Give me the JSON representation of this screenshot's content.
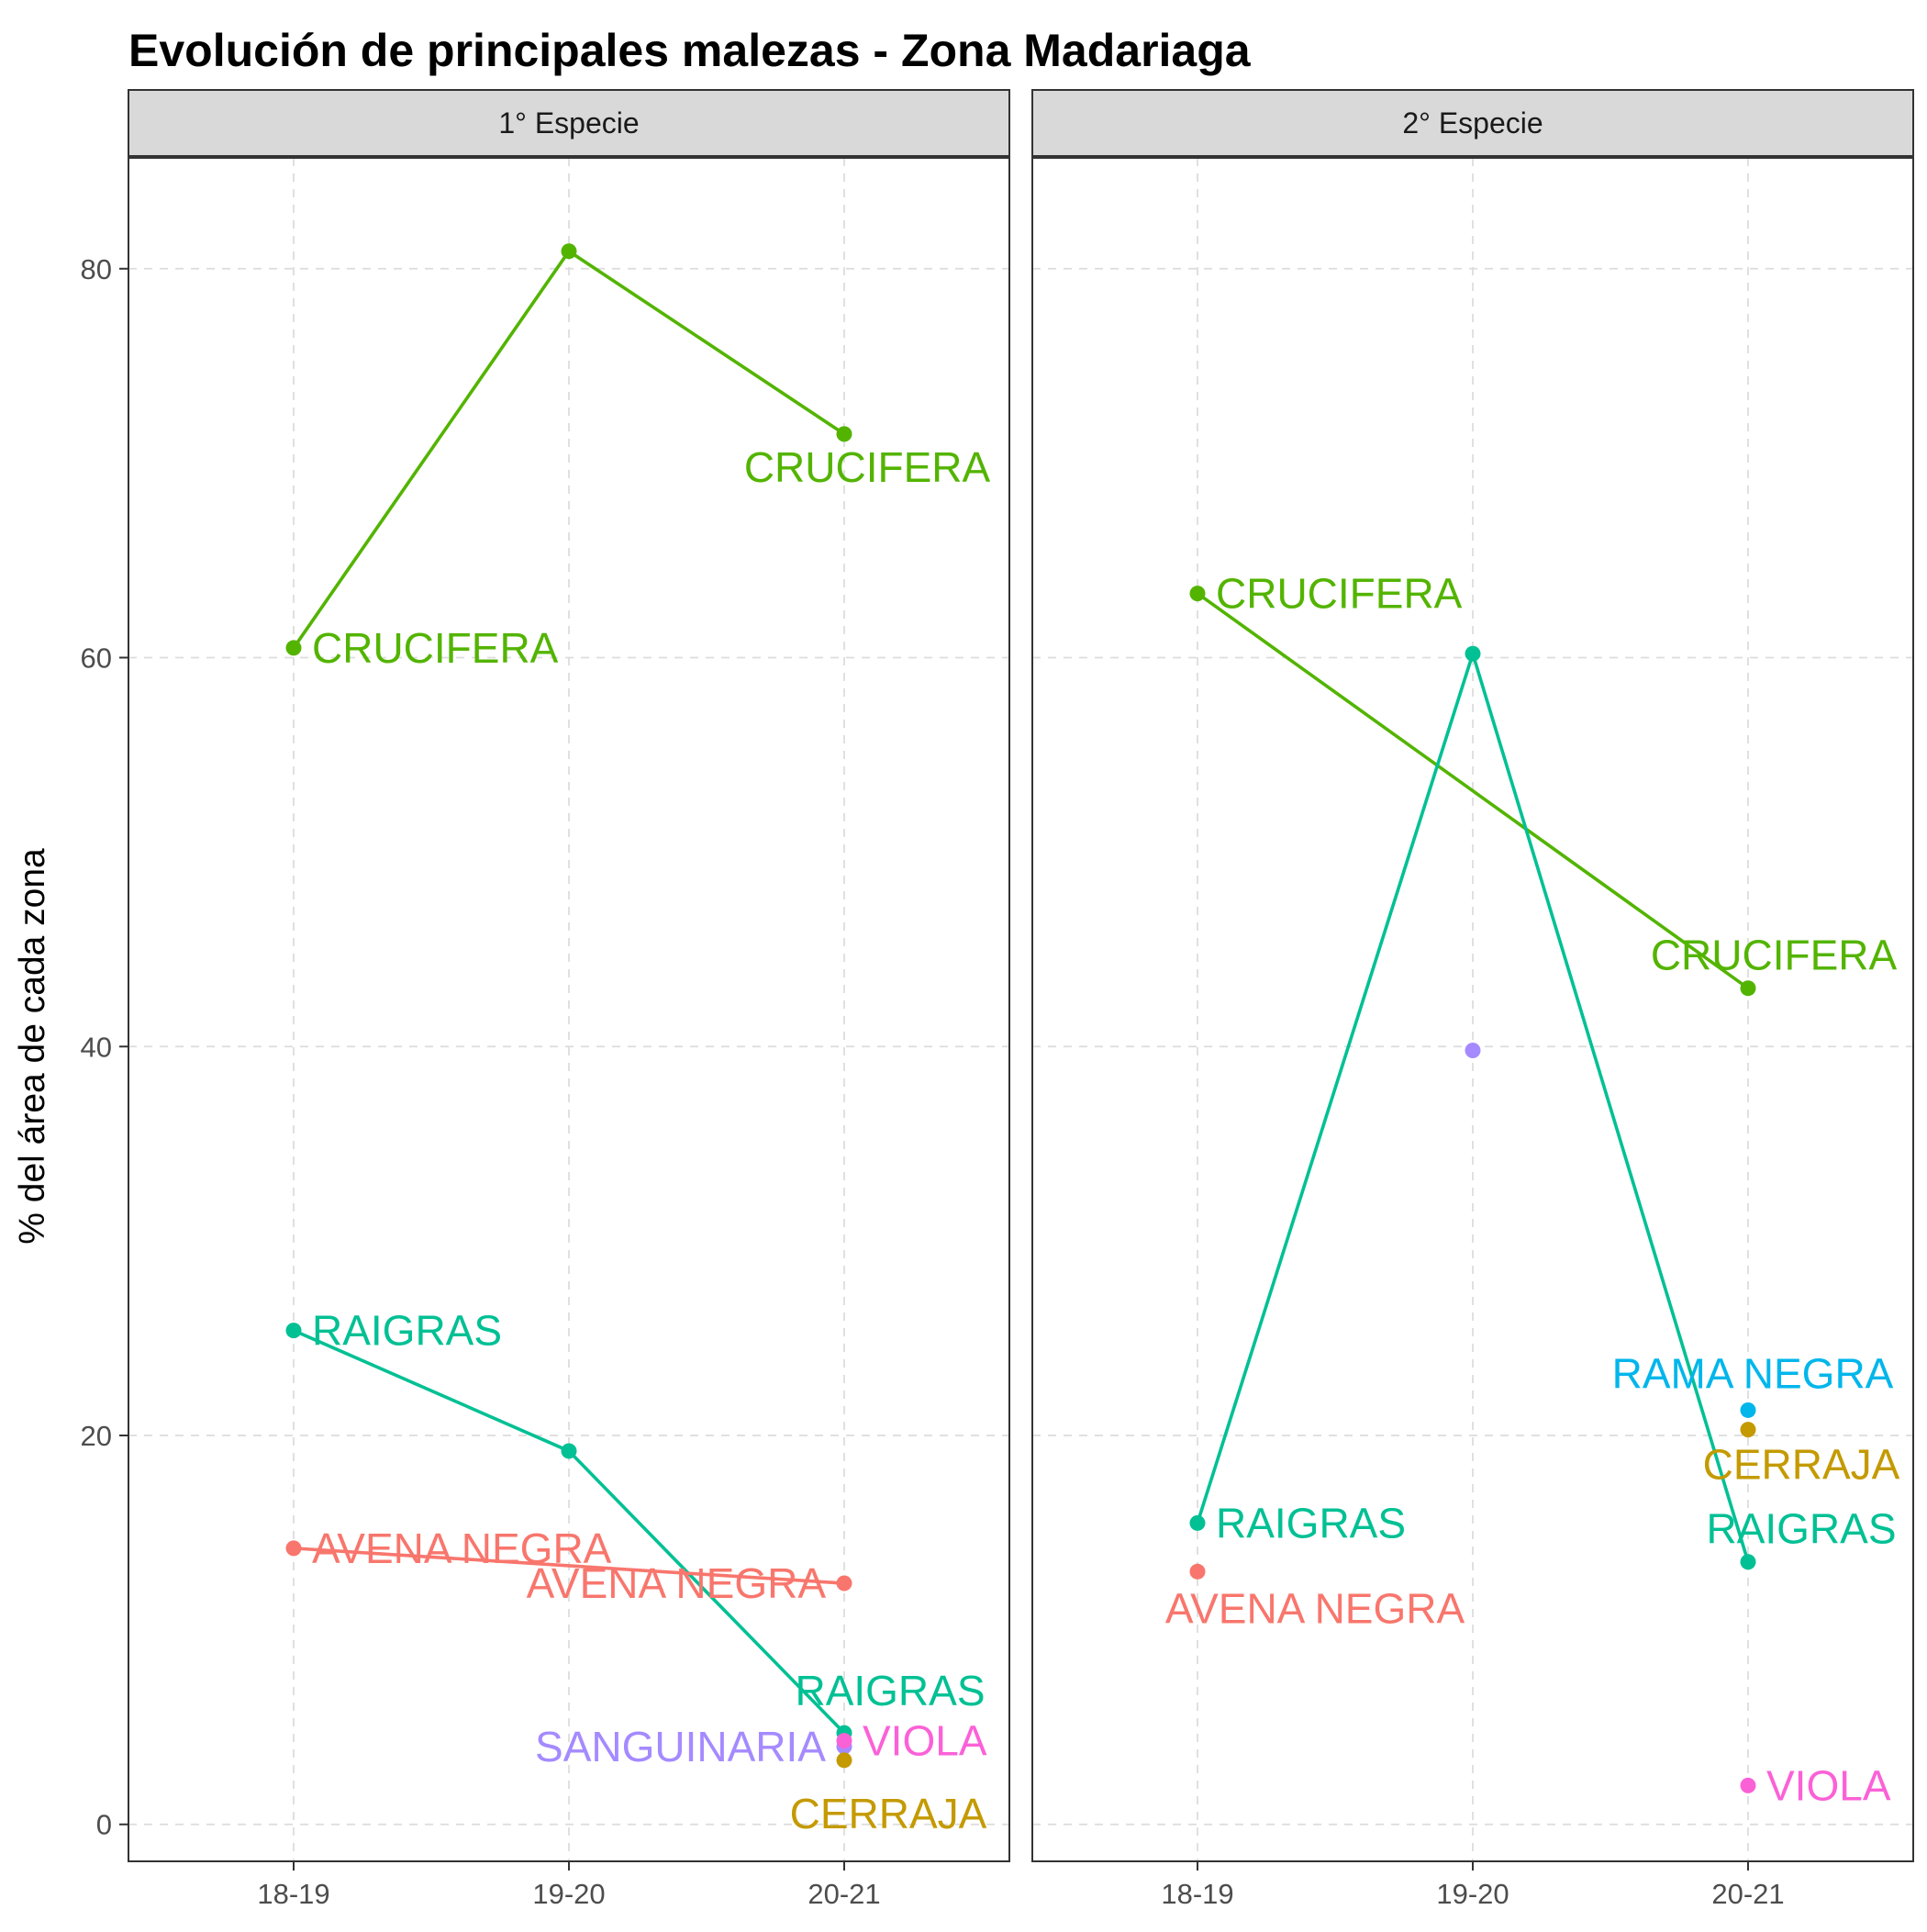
{
  "chart_data": {
    "type": "line",
    "title": "Evolución de principales malezas -  Zona Madariaga",
    "ylabel": "% del área de cada zona",
    "xlabel": "",
    "categories": [
      "18-19",
      "19-20",
      "20-21"
    ],
    "ylim": [
      -1.9,
      85.7
    ],
    "yticks": [
      0,
      20,
      40,
      60,
      80
    ],
    "grid": true,
    "legend": "none",
    "colors": {
      "AVENA NEGRA": "#F8766D",
      "CERRAJA": "#C49A00",
      "CRUCIFERA": "#53B400",
      "RAIGRAS": "#00C094",
      "RAMA NEGRA": "#00B6EB",
      "SANGUINARIA": "#A58AFF",
      "VIOLA": "#FB61D7"
    },
    "panels": [
      {
        "strip": "1° Especie",
        "series": [
          {
            "name": "CRUCIFERA",
            "values": [
              60.5,
              80.9,
              71.5
            ],
            "labels": [
              "CRUCIFERA",
              null,
              "CRUCIFERA"
            ]
          },
          {
            "name": "RAIGRAS",
            "values": [
              25.4,
              19.2,
              4.7
            ],
            "labels": [
              "RAIGRAS",
              null,
              "RAIGRAS"
            ]
          },
          {
            "name": "AVENA NEGRA",
            "values": [
              14.2,
              null,
              12.4
            ],
            "labels": [
              "AVENA NEGRA",
              null,
              "AVENA NEGRA"
            ]
          },
          {
            "name": "SANGUINARIA",
            "values": [
              null,
              null,
              4.0
            ],
            "labels": [
              null,
              null,
              "SANGUINARIA"
            ]
          },
          {
            "name": "VIOLA",
            "values": [
              null,
              null,
              4.3
            ],
            "labels": [
              null,
              null,
              "VIOLA"
            ]
          },
          {
            "name": "CERRAJA",
            "values": [
              null,
              null,
              3.3
            ],
            "labels": [
              null,
              null,
              "CERRAJA"
            ]
          }
        ]
      },
      {
        "strip": "2° Especie",
        "series": [
          {
            "name": "CRUCIFERA",
            "values": [
              63.3,
              null,
              43.0
            ],
            "labels": [
              "CRUCIFERA",
              null,
              "CRUCIFERA"
            ]
          },
          {
            "name": "RAIGRAS",
            "values": [
              15.5,
              60.2,
              13.5
            ],
            "labels": [
              "RAIGRAS",
              null,
              "RAIGRAS"
            ]
          },
          {
            "name": "AVENA NEGRA",
            "values": [
              13.0,
              null,
              null
            ],
            "labels": [
              "AVENA NEGRA",
              null,
              null
            ]
          },
          {
            "name": "SANGUINARIA",
            "values": [
              null,
              39.8,
              null
            ],
            "labels": [
              null,
              null,
              null
            ]
          },
          {
            "name": "RAMA NEGRA",
            "values": [
              null,
              null,
              21.3
            ],
            "labels": [
              null,
              null,
              "RAMA NEGRA"
            ]
          },
          {
            "name": "CERRAJA",
            "values": [
              null,
              null,
              20.3
            ],
            "labels": [
              null,
              null,
              "CERRAJA"
            ]
          },
          {
            "name": "VIOLA",
            "values": [
              null,
              null,
              2.0
            ],
            "labels": [
              null,
              null,
              "VIOLA"
            ]
          }
        ]
      }
    ]
  }
}
